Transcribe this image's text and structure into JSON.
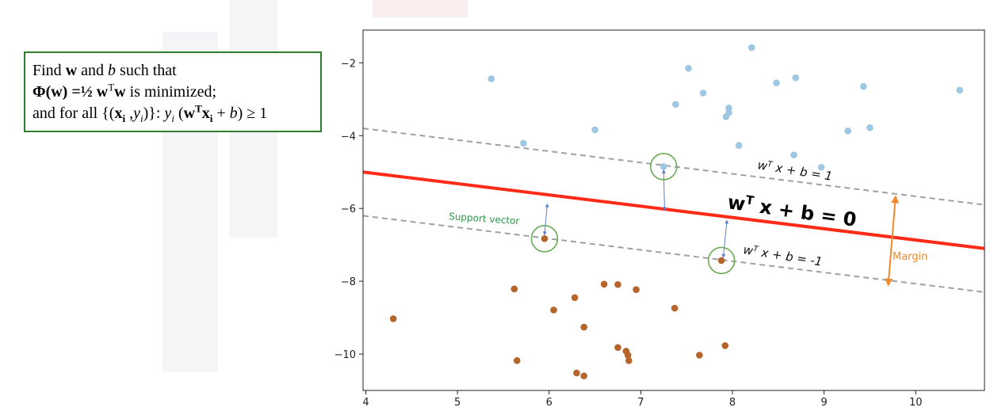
{
  "formula": {
    "line1_pre": "Find ",
    "line1_w": "w",
    "line1_mid": " and ",
    "line1_b": "b",
    "line1_post": " such that",
    "line2_phi": "Φ(w)",
    "line2_eq": " =½ ",
    "line2_w": "w",
    "line2_T": "T",
    "line2_w2": "w",
    "line2_post": "  is minimized;",
    "line3_pre": "and for all {(",
    "line3_x": "x",
    "line3_i": "i",
    "line3_mid": " ,",
    "line3_y": "y",
    "line3_i2": "i",
    "line3_close": ")}:  ",
    "line3_y2": "y",
    "line3_i3": "i",
    "line3_paren": " (",
    "line3_w": "w",
    "line3_T": "T",
    "line3_x2": "x",
    "line3_i4": "i",
    "line3_plus": " + ",
    "line3_b": "b",
    "line3_end": ") ≥ 1"
  },
  "colors": {
    "positive_points": "#9ec7e3",
    "negative_points": "#b5652a",
    "hyperplane": "#ff2a17",
    "margin_lines": "#a0a0a0",
    "support_circle": "#6aaa55",
    "support_label": "#2a9a4a",
    "margin_arrow": "#f08a2c",
    "distance_arrow": "#5b7fd0",
    "formula_border": "#2f7d2f"
  },
  "chart_data": {
    "type": "scatter",
    "xlim": [
      3.97,
      10.75
    ],
    "ylim": [
      -11.0,
      -1.1
    ],
    "x_ticks": [
      4,
      5,
      6,
      7,
      8,
      9,
      10
    ],
    "y_ticks": [
      -2,
      -4,
      -6,
      -8,
      -10
    ],
    "grid": false,
    "series": [
      {
        "color_key": "positive_points",
        "points": [
          [
            5.37,
            -2.44
          ],
          [
            5.72,
            -4.21
          ],
          [
            6.5,
            -3.84
          ],
          [
            7.25,
            -4.85
          ],
          [
            7.38,
            -3.14
          ],
          [
            7.52,
            -2.15
          ],
          [
            7.68,
            -2.83
          ],
          [
            7.93,
            -3.48
          ],
          [
            7.96,
            -3.37
          ],
          [
            7.96,
            -3.24
          ],
          [
            8.07,
            -4.27
          ],
          [
            8.21,
            -1.58
          ],
          [
            8.48,
            -2.55
          ],
          [
            8.69,
            -2.41
          ],
          [
            8.67,
            -4.53
          ],
          [
            8.97,
            -4.87
          ],
          [
            9.26,
            -3.87
          ],
          [
            9.43,
            -2.65
          ],
          [
            9.5,
            -3.78
          ],
          [
            10.48,
            -2.75
          ]
        ]
      },
      {
        "color_key": "negative_points",
        "points": [
          [
            4.3,
            -9.03
          ],
          [
            5.62,
            -8.21
          ],
          [
            5.65,
            -10.18
          ],
          [
            5.95,
            -6.83
          ],
          [
            6.05,
            -8.79
          ],
          [
            6.28,
            -8.45
          ],
          [
            6.3,
            -10.52
          ],
          [
            6.38,
            -9.26
          ],
          [
            6.38,
            -10.6
          ],
          [
            6.6,
            -8.08
          ],
          [
            6.75,
            -8.09
          ],
          [
            6.75,
            -9.82
          ],
          [
            6.84,
            -9.92
          ],
          [
            6.86,
            -10.03
          ],
          [
            6.87,
            -10.18
          ],
          [
            6.95,
            -8.23
          ],
          [
            7.37,
            -8.74
          ],
          [
            7.64,
            -10.03
          ],
          [
            7.88,
            -7.43
          ],
          [
            7.92,
            -9.77
          ]
        ]
      }
    ],
    "hyperplane": {
      "x1": 3.97,
      "y1": -5.0,
      "x2": 10.75,
      "y2": -7.1
    },
    "upper_margin": {
      "x1": 3.97,
      "y1": -3.8,
      "x2": 10.75,
      "y2": -5.9
    },
    "lower_margin": {
      "x1": 3.97,
      "y1": -6.2,
      "x2": 10.75,
      "y2": -8.3
    },
    "support_vectors": [
      [
        7.25,
        -4.85
      ],
      [
        5.95,
        -6.83
      ],
      [
        7.88,
        -7.43
      ]
    ],
    "distance_arrows": [
      {
        "from": [
          7.25,
          -4.95
        ],
        "to": [
          7.26,
          -6.05
        ]
      },
      {
        "from": [
          5.98,
          -5.88
        ],
        "to": [
          5.95,
          -6.72
        ]
      },
      {
        "from": [
          7.94,
          -6.33
        ],
        "to": [
          7.9,
          -7.34
        ]
      }
    ],
    "margin_arrow": {
      "from": [
        9.78,
        -5.68
      ],
      "to": [
        9.7,
        -8.1
      ]
    },
    "annotations": {
      "upper_label": "w^T x + b = 1",
      "upper_label_main": "w",
      "upper_label_sup": "T",
      "upper_label_rest": " x + b = 1",
      "main_label_main": "w",
      "main_label_sup": "T",
      "main_label_rest": " x + b = 0",
      "lower_label_main": "w",
      "lower_label_sup": "T",
      "lower_label_rest": " x + b = -1",
      "support_label": "Support vector",
      "margin_label": "Margin"
    }
  }
}
